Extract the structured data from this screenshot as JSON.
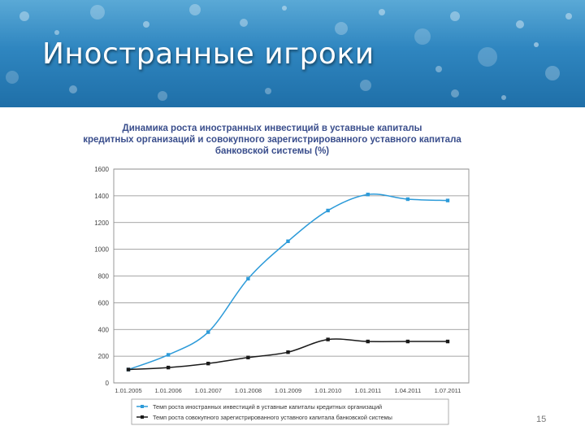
{
  "slide": {
    "title": "Иностранные игроки",
    "page_number": "15"
  },
  "colors": {
    "series_foreign": "#2d9bd9",
    "series_total": "#1a1a1a",
    "title_text": "#3a4e8c",
    "banner": "#2f86c0"
  },
  "chart_data": {
    "type": "line",
    "title_lines": [
      "Динамика роста иностранных инвестиций в уставные капиталы",
      "кредитных организаций и совокупного зарегистрированного уставного капитала",
      "банковской системы (%)"
    ],
    "categories": [
      "1.01.2005",
      "1.01.2006",
      "1.01.2007",
      "1.01.2008",
      "1.01.2009",
      "1.01.2010",
      "1.01.2011",
      "1.04.2011",
      "1.07.2011"
    ],
    "y_ticks": [
      "1600",
      "1400",
      "1200",
      "1000",
      "800",
      "600",
      "400",
      "200",
      "0"
    ],
    "ylim": [
      0,
      1600
    ],
    "grid": true,
    "legend_position": "bottom",
    "series": [
      {
        "name": "Темп роста иностранных инвестиций в уставные капиталы кредитных организаций",
        "values": [
          100,
          210,
          380,
          780,
          1060,
          1290,
          1410,
          1375,
          1365
        ]
      },
      {
        "name": "Темп роста совокупного зарегистрированного уставного капитала банковской системы",
        "values": [
          100,
          115,
          145,
          190,
          230,
          325,
          310,
          310,
          310
        ]
      }
    ]
  }
}
